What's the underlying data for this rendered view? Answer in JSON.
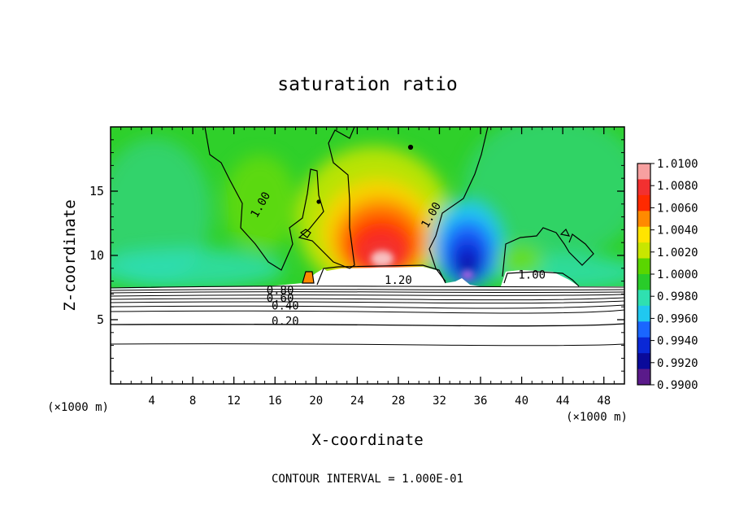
{
  "chart_data": {
    "type": "heatmap",
    "title": "saturation ratio",
    "xlabel": "X-coordinate",
    "ylabel": "Z-coordinate",
    "x_unit": "(×1000 m)",
    "footer": "CONTOUR INTERVAL = 1.000E-01",
    "xlim": [
      0,
      50
    ],
    "ylim": [
      0,
      20
    ],
    "x_ticks": [
      4,
      8,
      12,
      16,
      20,
      24,
      28,
      32,
      36,
      40,
      44,
      48
    ],
    "y_ticks": [
      5,
      10,
      15
    ],
    "colorbar": {
      "labels": [
        "1.0100",
        "1.0080",
        "1.0060",
        "1.0040",
        "1.0020",
        "1.0000",
        "0.9980",
        "0.9960",
        "0.9940",
        "0.9920",
        "0.9900"
      ],
      "colors": [
        "#f7a0a0",
        "#f23030",
        "#ff2a00",
        "#ff8a00",
        "#ffe400",
        "#c8e600",
        "#5ad600",
        "#29cc2a",
        "#2fe0b0",
        "#20c8f0",
        "#1a66ff",
        "#0a28d6",
        "#0a0a9a",
        "#5a1a8a"
      ]
    },
    "contour_labels": [
      {
        "text": "1.00",
        "x": 14.9,
        "y": 13.8
      },
      {
        "text": "1.00",
        "x": 31.5,
        "y": 13.0
      },
      {
        "text": "1.00",
        "x": 41.0,
        "y": 8.2
      },
      {
        "text": "1.20",
        "x": 28.0,
        "y": 7.8
      },
      {
        "text": "0.80",
        "x": 16.5,
        "y": 7.0
      },
      {
        "text": "0.60",
        "x": 16.5,
        "y": 6.4
      },
      {
        "text": "0.40",
        "x": 17.0,
        "y": 5.8
      },
      {
        "text": "0.20",
        "x": 17.0,
        "y": 4.6
      }
    ]
  }
}
